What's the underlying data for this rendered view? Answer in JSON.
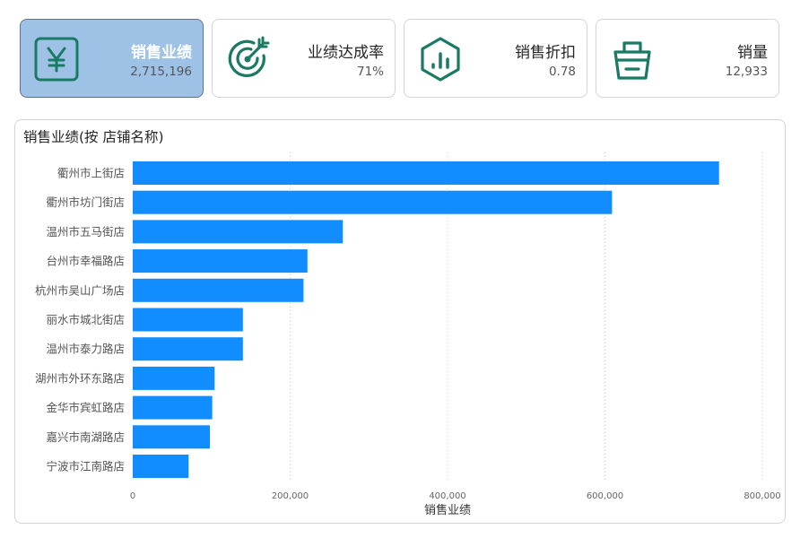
{
  "kpis": [
    {
      "title": "销售业绩",
      "value": "2,715,196",
      "icon": "yen-icon",
      "active": true
    },
    {
      "title": "业绩达成率",
      "value": "71%",
      "icon": "target-icon",
      "active": false
    },
    {
      "title": "销售折扣",
      "value": "0.78",
      "icon": "hexagon-chart-icon",
      "active": false
    },
    {
      "title": "销量",
      "value": "12,933",
      "icon": "shopping-bag-icon",
      "active": false
    }
  ],
  "colors": {
    "icon": "#1a7a64",
    "bar": "#118dff",
    "active_card": "#9ec2e6",
    "active_border": "#5f7388"
  },
  "chart": {
    "title": "销售业绩(按 店铺名称)"
  },
  "chart_data": {
    "type": "bar",
    "orientation": "horizontal",
    "categories": [
      "衢州市上街店",
      "衢州市坊门街店",
      "温州市五马街店",
      "台州市幸福路店",
      "杭州市吴山广场店",
      "丽水市城北街店",
      "温州市泰力路店",
      "湖州市外环东路店",
      "金华市宾虹路店",
      "嘉兴市南湖路店",
      "宁波市江南路店"
    ],
    "values": [
      745000,
      609000,
      267000,
      222000,
      217000,
      140000,
      140000,
      104000,
      101000,
      98000,
      71000
    ],
    "xlabel": "销售业绩",
    "ylabel": "",
    "xlim": [
      0,
      800000
    ],
    "xticks": [
      0,
      200000,
      400000,
      600000,
      800000
    ],
    "xtick_labels": [
      "0",
      "200,000",
      "400,000",
      "600,000",
      "800,000"
    ],
    "grid": true
  }
}
